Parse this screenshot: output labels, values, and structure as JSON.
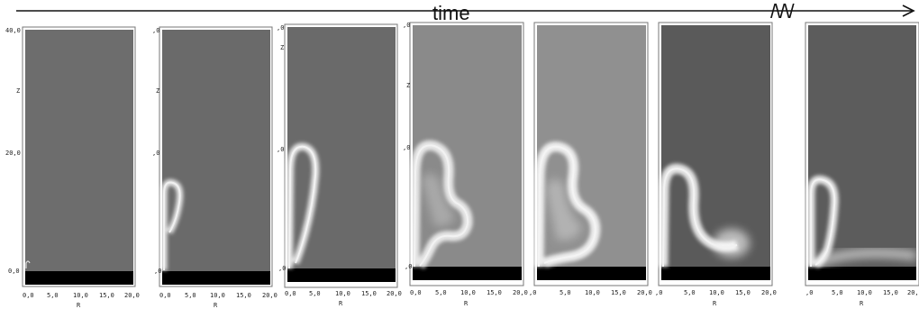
{
  "timeline": {
    "label": "time",
    "break_mark": "/\\/\\/"
  },
  "axes": {
    "x_label": "R",
    "z_label": "Z",
    "x_ticks": [
      "0,0",
      "5,0",
      "10,0",
      "15,0",
      "20,0"
    ],
    "z_ticks": [
      "0,0",
      "20,0",
      "40,0"
    ]
  },
  "frames": [
    {
      "id": 1,
      "background": "#6d6d6d",
      "plume": "none"
    },
    {
      "id": 2,
      "background": "#6a6a6a",
      "plume": "small-hook"
    },
    {
      "id": 3,
      "background": "#6a6a6a",
      "plume": "tall-hook"
    },
    {
      "id": 4,
      "background": "#8a8a8a",
      "plume": "large-hook"
    },
    {
      "id": 5,
      "background": "#909090",
      "plume": "large-hook-bright"
    },
    {
      "id": 6,
      "background": "#5a5a5a",
      "plume": "spreading-hook"
    },
    {
      "id": 7,
      "background": "#5c5c5c",
      "plume": "flattened-hook"
    }
  ]
}
